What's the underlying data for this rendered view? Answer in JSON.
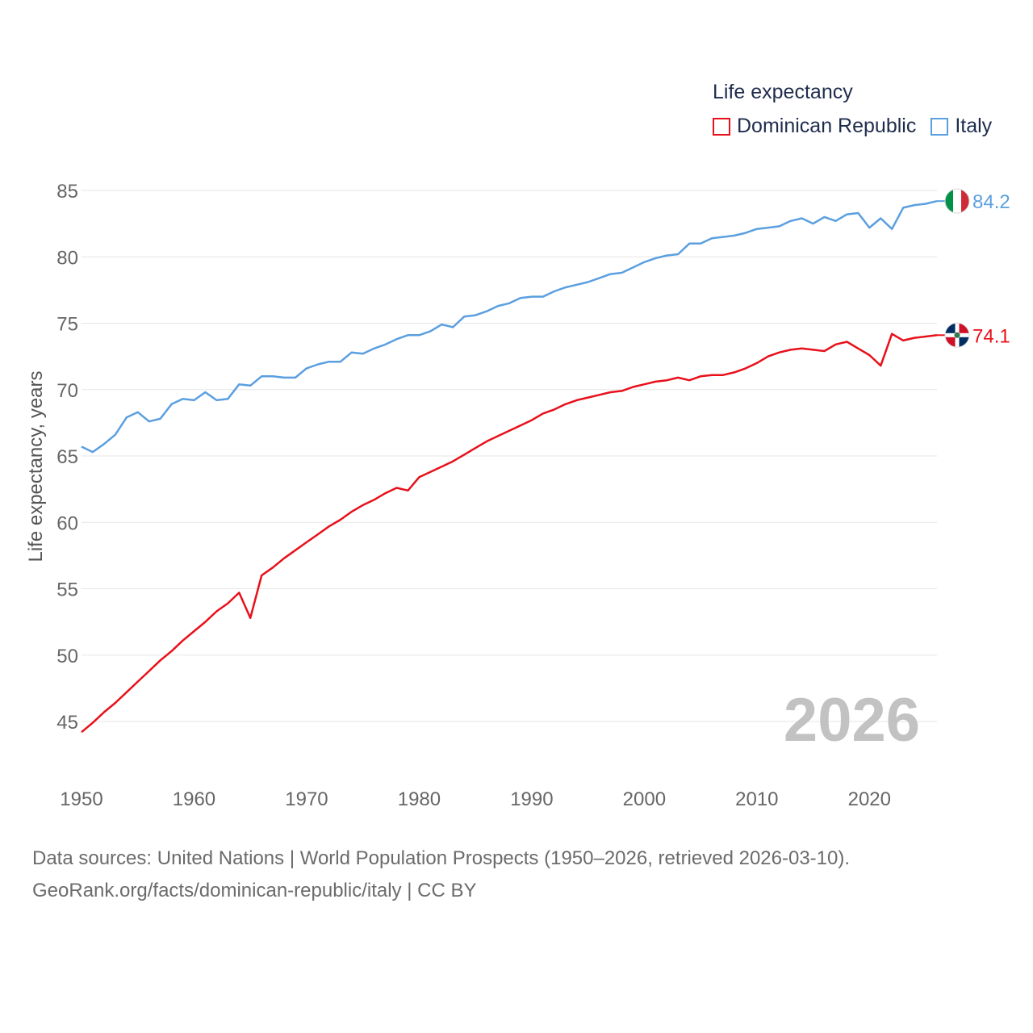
{
  "chart_data": {
    "type": "line",
    "title": "Life expectancy",
    "ylabel": "Life expectancy, years",
    "xlabel": "",
    "xlim": [
      1950,
      2026
    ],
    "ylim": [
      43,
      87
    ],
    "xticks": [
      1950,
      1960,
      1970,
      1980,
      1990,
      2000,
      2010,
      2020
    ],
    "yticks": [
      45,
      50,
      55,
      60,
      65,
      70,
      75,
      80,
      85
    ],
    "grid": true,
    "legend_position": "top-right",
    "watermark_year": "2026",
    "series": [
      {
        "name": "Dominican Republic",
        "color": "#e8101a",
        "end_label": "74.1",
        "flag": "dominican-republic",
        "x": [
          1950,
          1951,
          1952,
          1953,
          1954,
          1955,
          1956,
          1957,
          1958,
          1959,
          1960,
          1961,
          1962,
          1963,
          1964,
          1965,
          1966,
          1967,
          1968,
          1969,
          1970,
          1971,
          1972,
          1973,
          1974,
          1975,
          1976,
          1977,
          1978,
          1979,
          1980,
          1981,
          1982,
          1983,
          1984,
          1985,
          1986,
          1987,
          1988,
          1989,
          1990,
          1991,
          1992,
          1993,
          1994,
          1995,
          1996,
          1997,
          1998,
          1999,
          2000,
          2001,
          2002,
          2003,
          2004,
          2005,
          2006,
          2007,
          2008,
          2009,
          2010,
          2011,
          2012,
          2013,
          2014,
          2015,
          2016,
          2017,
          2018,
          2019,
          2020,
          2021,
          2022,
          2023,
          2024,
          2025,
          2026
        ],
        "values": [
          44.2,
          44.9,
          45.7,
          46.4,
          47.2,
          48.0,
          48.8,
          49.6,
          50.3,
          51.1,
          51.8,
          52.5,
          53.3,
          53.9,
          54.7,
          52.8,
          56.0,
          56.6,
          57.3,
          57.9,
          58.5,
          59.1,
          59.7,
          60.2,
          60.8,
          61.3,
          61.7,
          62.2,
          62.6,
          62.4,
          63.4,
          63.8,
          64.2,
          64.6,
          65.1,
          65.6,
          66.1,
          66.5,
          66.9,
          67.3,
          67.7,
          68.2,
          68.5,
          68.9,
          69.2,
          69.4,
          69.6,
          69.8,
          69.9,
          70.2,
          70.4,
          70.6,
          70.7,
          70.9,
          70.7,
          71.0,
          71.1,
          71.1,
          71.3,
          71.6,
          72.0,
          72.5,
          72.8,
          73.0,
          73.1,
          73.0,
          72.9,
          73.4,
          73.6,
          73.1,
          72.6,
          71.8,
          74.2,
          73.7,
          73.9,
          74.0,
          74.1
        ]
      },
      {
        "name": "Italy",
        "color": "#5b9fe0",
        "end_label": "84.2",
        "flag": "italy",
        "x": [
          1950,
          1951,
          1952,
          1953,
          1954,
          1955,
          1956,
          1957,
          1958,
          1959,
          1960,
          1961,
          1962,
          1963,
          1964,
          1965,
          1966,
          1967,
          1968,
          1969,
          1970,
          1971,
          1972,
          1973,
          1974,
          1975,
          1976,
          1977,
          1978,
          1979,
          1980,
          1981,
          1982,
          1983,
          1984,
          1985,
          1986,
          1987,
          1988,
          1989,
          1990,
          1991,
          1992,
          1993,
          1994,
          1995,
          1996,
          1997,
          1998,
          1999,
          2000,
          2001,
          2002,
          2003,
          2004,
          2005,
          2006,
          2007,
          2008,
          2009,
          2010,
          2011,
          2012,
          2013,
          2014,
          2015,
          2016,
          2017,
          2018,
          2019,
          2020,
          2021,
          2022,
          2023,
          2024,
          2025,
          2026
        ],
        "values": [
          65.7,
          65.3,
          65.9,
          66.6,
          67.9,
          68.3,
          67.6,
          67.8,
          68.9,
          69.3,
          69.2,
          69.8,
          69.2,
          69.3,
          70.4,
          70.3,
          71.0,
          71.0,
          70.9,
          70.9,
          71.6,
          71.9,
          72.1,
          72.1,
          72.8,
          72.7,
          73.1,
          73.4,
          73.8,
          74.1,
          74.1,
          74.4,
          74.9,
          74.7,
          75.5,
          75.6,
          75.9,
          76.3,
          76.5,
          76.9,
          77.0,
          77.0,
          77.4,
          77.7,
          77.9,
          78.1,
          78.4,
          78.7,
          78.8,
          79.2,
          79.6,
          79.9,
          80.1,
          80.2,
          81.0,
          81.0,
          81.4,
          81.5,
          81.6,
          81.8,
          82.1,
          82.2,
          82.3,
          82.7,
          82.9,
          82.5,
          83.0,
          82.7,
          83.2,
          83.3,
          82.2,
          82.9,
          82.1,
          83.7,
          83.9,
          84.0,
          84.2
        ]
      }
    ]
  },
  "footer": {
    "sources": "Data sources: United Nations | World Population Prospects (1950–2026, retrieved 2026-03-10).",
    "attribution": "GeoRank.org/facts/dominican-republic/italy | CC BY"
  }
}
